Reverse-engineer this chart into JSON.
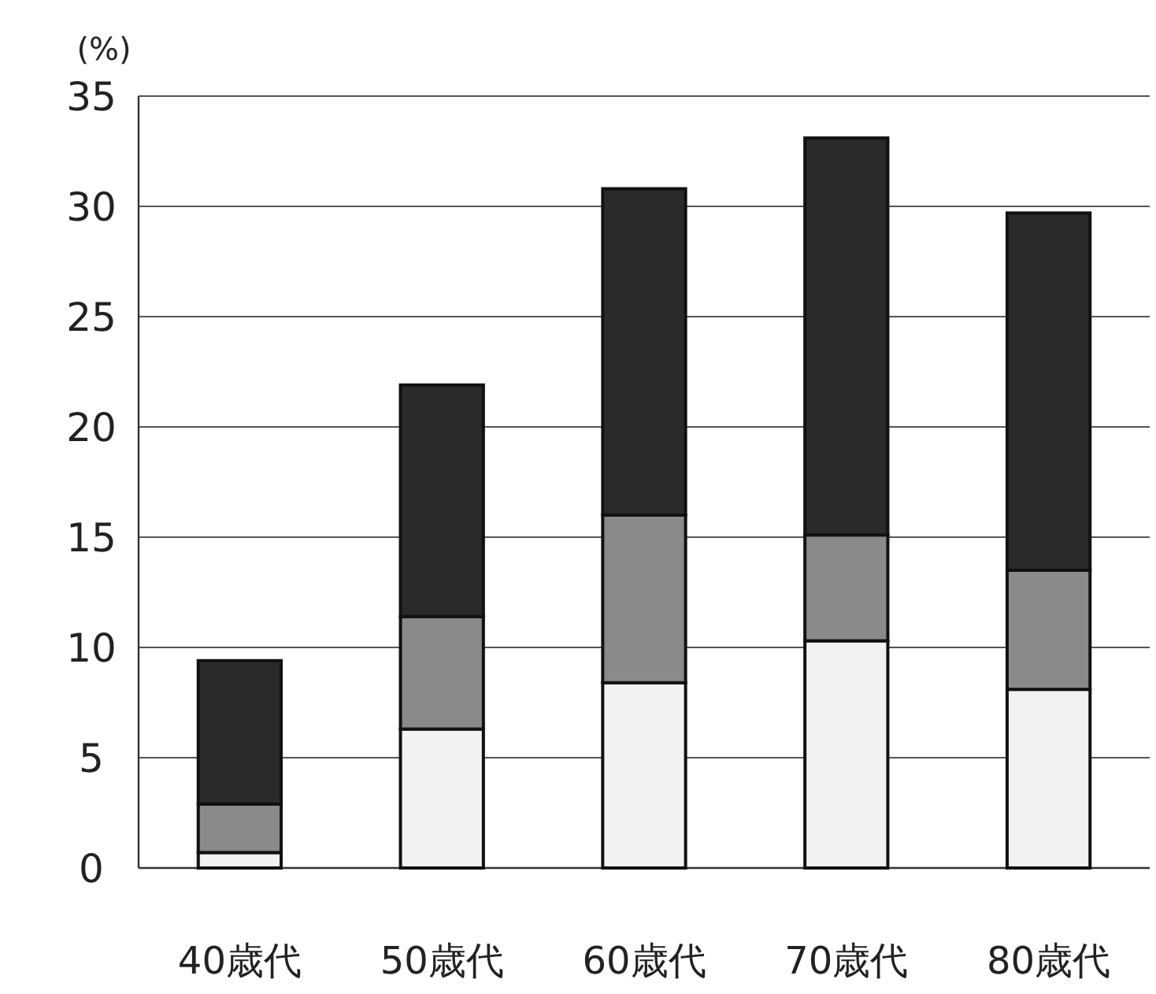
{
  "chart_data": {
    "type": "bar",
    "stacked": true,
    "ylabel": "(%)",
    "categories": [
      "40歳代",
      "50歳代",
      "60歳代",
      "70歳代",
      "80歳代"
    ],
    "series": [
      {
        "color": "#f2f2f2",
        "values": [
          0.7,
          6.3,
          8.4,
          10.3,
          8.1
        ]
      },
      {
        "color": "#8a8a8a",
        "values": [
          2.2,
          5.1,
          7.6,
          4.8,
          5.4
        ]
      },
      {
        "color": "#2a2a2a",
        "values": [
          6.5,
          10.5,
          14.8,
          18.0,
          16.2
        ]
      }
    ],
    "ylim": [
      0,
      35
    ],
    "yticks": [
      0,
      5,
      10,
      15,
      20,
      25,
      30,
      35
    ],
    "grid": "y"
  }
}
